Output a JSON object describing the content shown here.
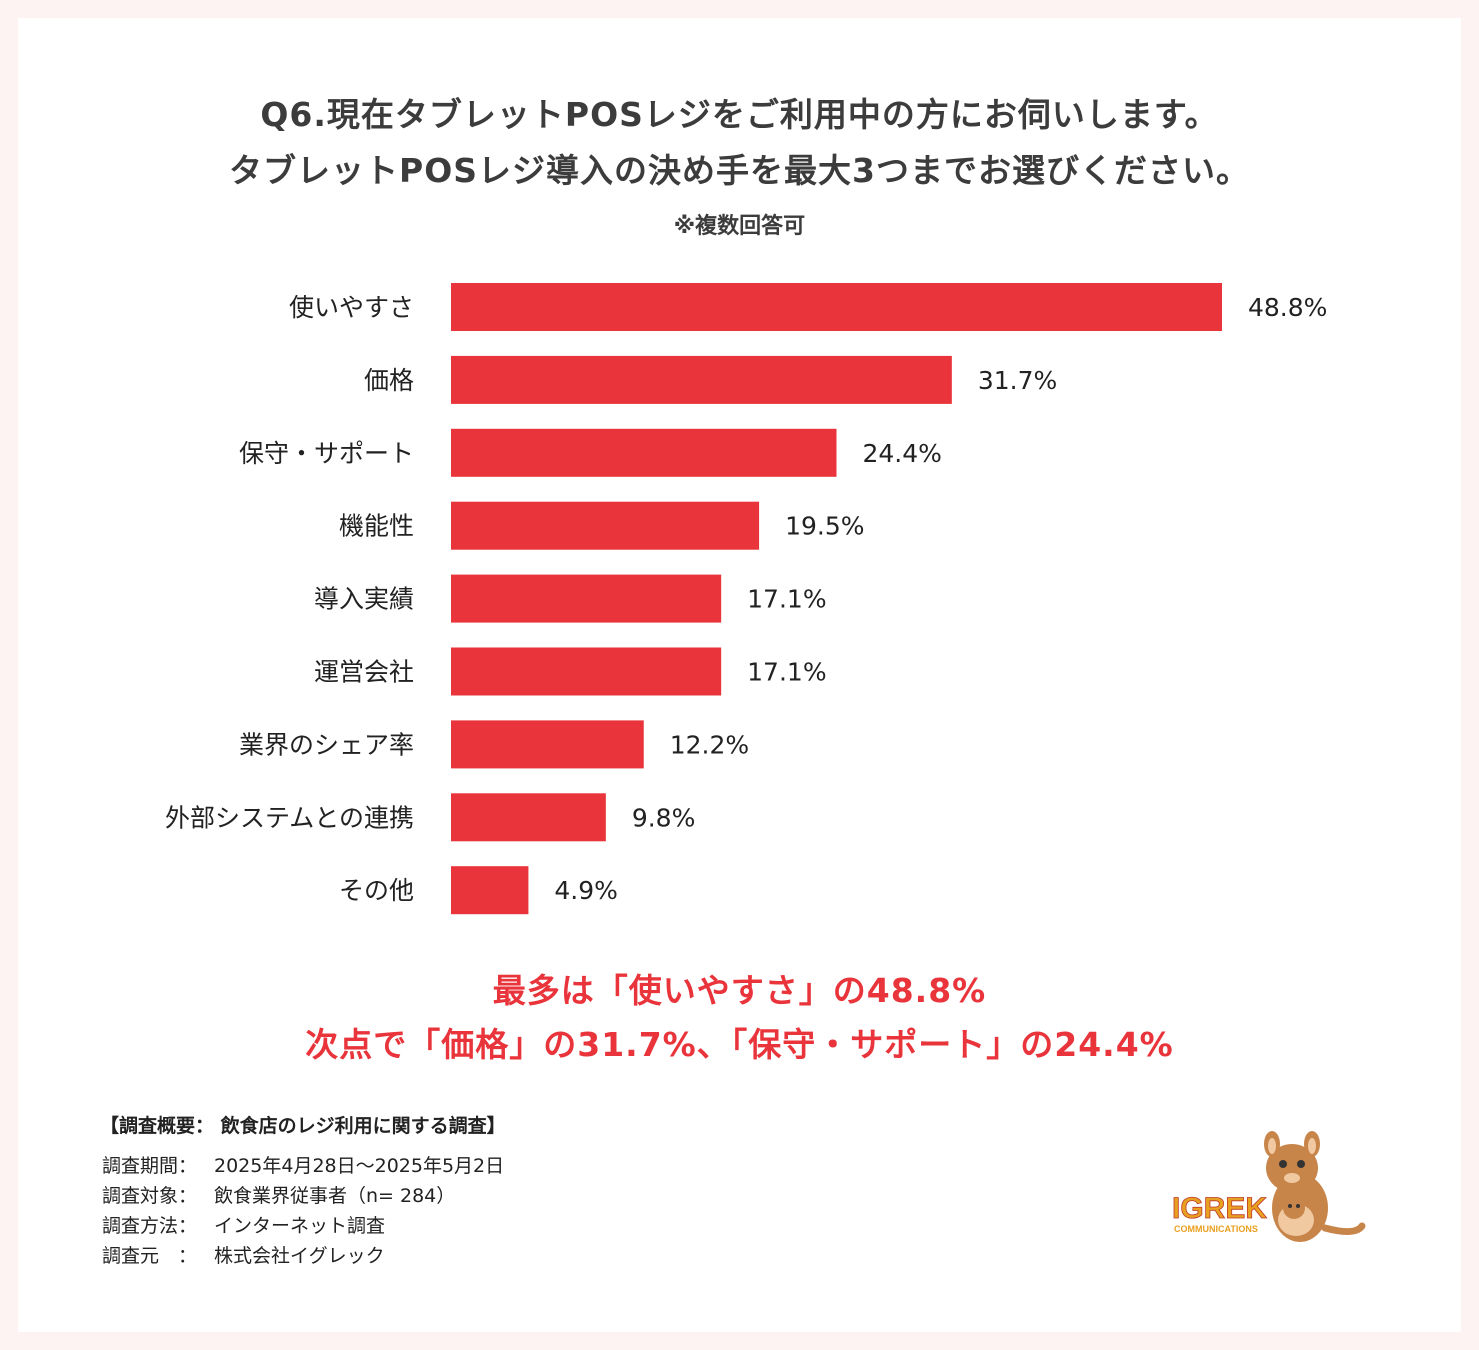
{
  "title_lines": [
    "Q6.現在タブレットPOSレジをご利用中の方にお伺いします。",
    "タブレットPOSレジ導入の決め手を最大3つまでお選びください。"
  ],
  "note": "※複数回答可",
  "chart_data": {
    "type": "bar",
    "orientation": "horizontal",
    "categories": [
      "使いやすさ",
      "価格",
      "保守・サポート",
      "機能性",
      "導入実績",
      "運営会社",
      "業界のシェア率",
      "外部システムとの連携",
      "その他"
    ],
    "values": [
      48.8,
      31.7,
      24.4,
      19.5,
      17.1,
      17.1,
      12.2,
      9.8,
      4.9
    ],
    "value_labels": [
      "48.8%",
      "31.7%",
      "24.4%",
      "19.5%",
      "17.1%",
      "17.1%",
      "12.2%",
      "9.8%",
      "4.9%"
    ],
    "unit": "%",
    "xlim": [
      0,
      48.8
    ],
    "bar_color": "#e8343a",
    "grid": false
  },
  "summary_lines": [
    "最多は「使いやすさ」の48.8%",
    "次点で「価格」の31.7%、「保守・サポート」の24.4%"
  ],
  "survey": {
    "heading": "【調査概要： 飲食店のレジ利用に関する調査】",
    "rows": [
      {
        "key": "調査期間：",
        "value": "2025年4月28日～2025年5月2日"
      },
      {
        "key": "調査対象：",
        "value": "飲食業界従事者（n= 284）"
      },
      {
        "key": "調査方法：",
        "value": "インターネット調査"
      },
      {
        "key": "調査元　：",
        "value": "株式会社イグレック"
      }
    ]
  },
  "logo": {
    "name": "IGREK",
    "sub": "COMMUNICATIONS"
  },
  "colors": {
    "accent": "#e8343a",
    "text": "#3c3c3c",
    "background": "#fdf3f3"
  }
}
